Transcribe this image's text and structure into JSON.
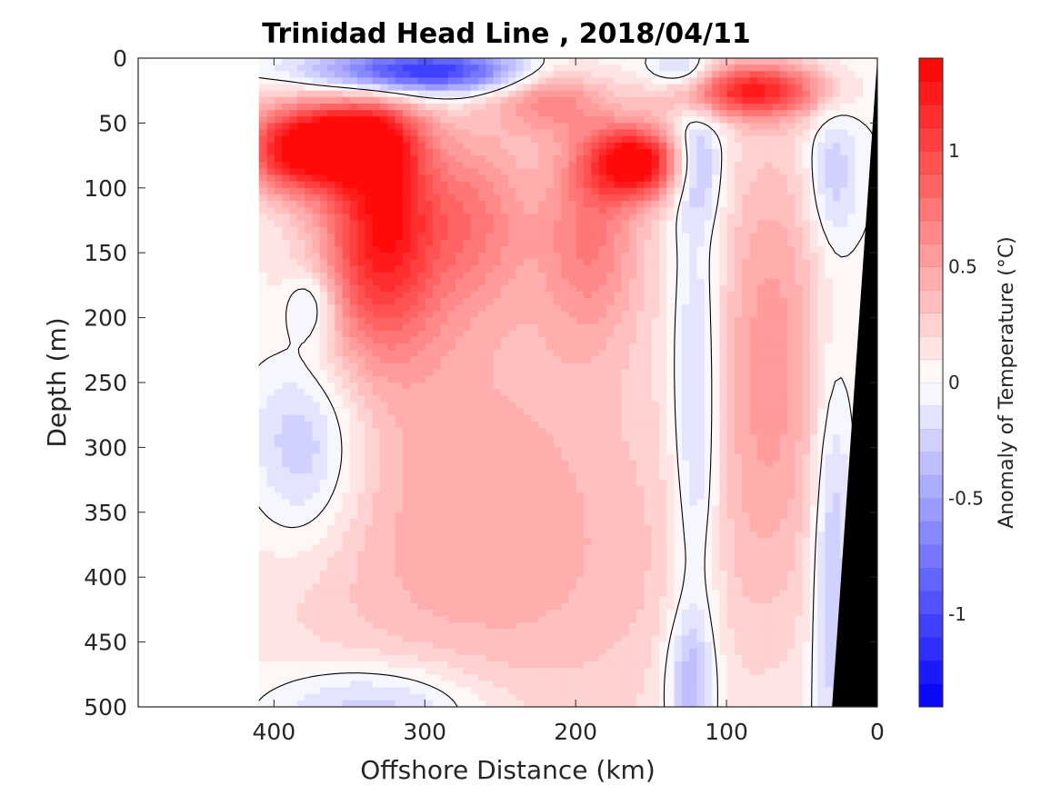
{
  "chart_data": {
    "type": "heatmap",
    "title": "Trinidad Head Line , 2018/04/11",
    "xlabel": "Offshore Distance (km)",
    "ylabel": "Depth (m)",
    "xlim": [
      490,
      0
    ],
    "ylim": [
      0,
      500
    ],
    "x_ticks": [
      400,
      300,
      200,
      100,
      0
    ],
    "x_tick_labels": [
      "400",
      "300",
      "200",
      "100",
      "0"
    ],
    "y_ticks": [
      0,
      50,
      100,
      150,
      200,
      250,
      300,
      350,
      400,
      450,
      500
    ],
    "y_tick_labels": [
      "0",
      "50",
      "100",
      "150",
      "200",
      "250",
      "300",
      "350",
      "400",
      "450",
      "500"
    ],
    "colorbar": {
      "label": "Anomaly of Temperature (°C)",
      "min": -1.4,
      "max": 1.4,
      "step": 0.1,
      "ticks": [
        1,
        0.5,
        0,
        -0.5,
        -1
      ],
      "tick_labels": [
        "1",
        "0.5",
        "0",
        "-0.5",
        "-1"
      ],
      "low_color": "#0000ff",
      "high_color": "#ff0000",
      "mid_color": "#ffffff"
    },
    "data_extent_x_max_km": 410,
    "bathymetry_color": "#000000",
    "blobs": [
      {
        "x": 383,
        "y": 70,
        "sx": 30,
        "sy": 25,
        "a": 1.3
      },
      {
        "x": 340,
        "y": 60,
        "sx": 25,
        "sy": 20,
        "a": 0.9
      },
      {
        "x": 330,
        "y": 160,
        "sx": 30,
        "sy": 55,
        "a": 0.85
      },
      {
        "x": 325,
        "y": 100,
        "sx": 25,
        "sy": 40,
        "a": 0.6
      },
      {
        "x": 265,
        "y": 120,
        "sx": 25,
        "sy": 50,
        "a": 0.5
      },
      {
        "x": 270,
        "y": 300,
        "sx": 100,
        "sy": 140,
        "a": 0.35
      },
      {
        "x": 220,
        "y": 30,
        "sx": 25,
        "sy": 20,
        "a": 0.55
      },
      {
        "x": 160,
        "y": 80,
        "sx": 22,
        "sy": 20,
        "a": 1.3
      },
      {
        "x": 190,
        "y": 130,
        "sx": 25,
        "sy": 60,
        "a": 0.6
      },
      {
        "x": 85,
        "y": 25,
        "sx": 35,
        "sy": 15,
        "a": 1.1
      },
      {
        "x": 70,
        "y": 220,
        "sx": 28,
        "sy": 130,
        "a": 0.5
      },
      {
        "x": 230,
        "y": 420,
        "sx": 150,
        "sy": 100,
        "a": 0.2
      },
      {
        "x": 300,
        "y": 10,
        "sx": 50,
        "sy": 12,
        "a": -1.2
      },
      {
        "x": 130,
        "y": 10,
        "sx": 15,
        "sy": 10,
        "a": -0.4
      },
      {
        "x": 120,
        "y": 80,
        "sx": 12,
        "sy": 30,
        "a": -0.45
      },
      {
        "x": 120,
        "y": 280,
        "sx": 12,
        "sy": 120,
        "a": -0.45
      },
      {
        "x": 125,
        "y": 480,
        "sx": 12,
        "sy": 40,
        "a": -0.45
      },
      {
        "x": 380,
        "y": 300,
        "sx": 28,
        "sy": 55,
        "a": -0.5
      },
      {
        "x": 375,
        "y": 190,
        "sx": 12,
        "sy": 20,
        "a": -0.4
      },
      {
        "x": 30,
        "y": 390,
        "sx": 10,
        "sy": 110,
        "a": -0.45
      },
      {
        "x": 30,
        "y": 90,
        "sx": 12,
        "sy": 40,
        "a": -0.35
      },
      {
        "x": 330,
        "y": 500,
        "sx": 50,
        "sy": 25,
        "a": -0.45
      }
    ]
  }
}
